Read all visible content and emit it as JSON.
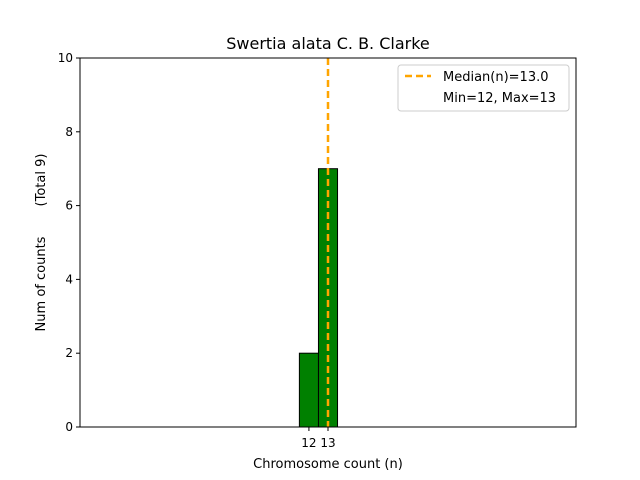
{
  "chart_data": {
    "type": "bar",
    "title": "Swertia alata C. B. Clarke",
    "xlabel": "Chromosome count (n)",
    "ylabel": "Num of counts",
    "ylabel_total": "(Total 9)",
    "x_ticks": [
      12,
      13
    ],
    "y_ticks": [
      0,
      2,
      4,
      6,
      8,
      10
    ],
    "xlim": [
      0,
      26
    ],
    "ylim": [
      0,
      10
    ],
    "bars": [
      {
        "x": 12,
        "value": 2
      },
      {
        "x": 13,
        "value": 7
      }
    ],
    "bar_color": "#008000",
    "bar_edge_color": "#000000",
    "median": 13.0,
    "median_color": "#ffa500",
    "legend": {
      "placement": "upper right",
      "entries": [
        "Median(n)=13.0",
        "Min=12, Max=13"
      ]
    },
    "grid": false
  }
}
